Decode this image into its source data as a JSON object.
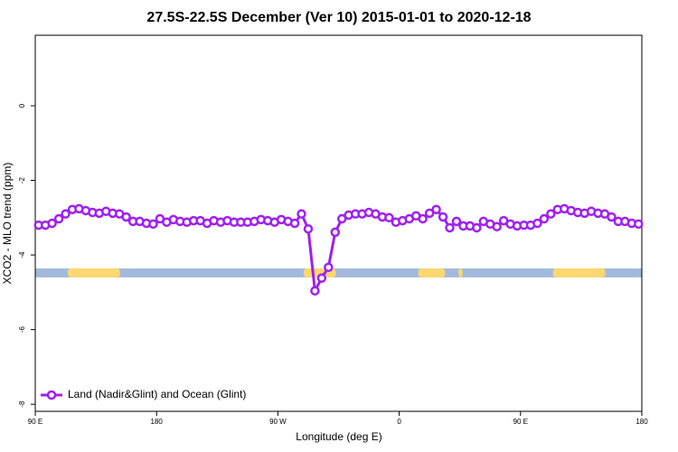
{
  "chart_data": {
    "type": "line",
    "title": "27.5S-22.5S December (Ver 10)   2015-01-01 to 2020-12-18",
    "xlabel": "Longitude (deg E)",
    "ylabel": "XCO2 - MLO trend (ppm)",
    "xlim": [
      90,
      540
    ],
    "ylim": [
      -8.19,
      1.89
    ],
    "xticks": [
      {
        "value": 90,
        "label": "90 E"
      },
      {
        "value": 180,
        "label": "180"
      },
      {
        "value": 270,
        "label": "90 W"
      },
      {
        "value": 360,
        "label": "0"
      },
      {
        "value": 450,
        "label": "90 E"
      },
      {
        "value": 540,
        "label": "180"
      }
    ],
    "yticks": [
      0,
      -2,
      -4,
      -6,
      -8
    ],
    "legend": "bottom-left",
    "x": [
      92.5,
      97.5,
      102.5,
      107.5,
      112.5,
      117.5,
      122.5,
      127.5,
      132.5,
      137.5,
      142.5,
      147.5,
      152.5,
      157.5,
      162.5,
      167.5,
      172.5,
      177.5,
      182.5,
      187.5,
      192.5,
      197.5,
      202.5,
      207.5,
      212.5,
      217.5,
      222.5,
      227.5,
      232.5,
      237.5,
      242.5,
      247.5,
      252.5,
      257.5,
      262.5,
      267.5,
      272.5,
      277.5,
      282.5,
      287.5,
      292.5,
      297.5,
      302.5,
      307.5,
      312.5,
      317.5,
      322.5,
      327.5,
      332.5,
      337.5,
      342.5,
      347.5,
      352.5,
      357.5,
      362.5,
      367.5,
      372.5,
      377.5,
      382.5,
      387.5,
      392.5,
      397.5,
      402.5,
      407.5,
      412.5,
      417.5,
      422.5,
      427.5,
      432.5,
      437.5,
      442.5,
      447.5,
      452.5,
      457.5,
      462.5,
      467.5,
      472.5,
      477.5,
      482.5,
      487.5,
      492.5,
      497.5,
      502.5,
      507.5,
      512.5,
      517.5,
      522.5,
      527.5,
      532.5,
      537.5
    ],
    "series": [
      {
        "name": "Land (Nadir&Glint) and Ocean (Glint)",
        "color": "#a020f0",
        "values": [
          -3.2,
          -3.2,
          -3.15,
          -3.03,
          -2.9,
          -2.78,
          -2.76,
          -2.81,
          -2.86,
          -2.88,
          -2.83,
          -2.88,
          -2.9,
          -2.98,
          -3.1,
          -3.1,
          -3.15,
          -3.17,
          -3.03,
          -3.12,
          -3.05,
          -3.1,
          -3.12,
          -3.08,
          -3.08,
          -3.15,
          -3.08,
          -3.12,
          -3.08,
          -3.12,
          -3.12,
          -3.12,
          -3.1,
          -3.05,
          -3.08,
          -3.12,
          -3.05,
          -3.1,
          -3.15,
          -2.9,
          -3.3,
          -4.96,
          -4.62,
          -4.33,
          -3.39,
          -3.03,
          -2.93,
          -2.9,
          -2.9,
          -2.86,
          -2.9,
          -2.98,
          -3.0,
          -3.12,
          -3.08,
          -3.03,
          -2.95,
          -3.03,
          -2.88,
          -2.78,
          -2.98,
          -3.27,
          -3.1,
          -3.22,
          -3.22,
          -3.27,
          -3.1,
          -3.17,
          -3.24,
          -3.08,
          -3.17,
          -3.22,
          -3.2,
          -3.2,
          -3.15,
          -3.03,
          -2.9,
          -2.78,
          -2.76,
          -2.81,
          -2.86,
          -2.88,
          -2.83,
          -2.88,
          -2.9,
          -2.98,
          -3.1,
          -3.1,
          -3.15,
          -3.17
        ]
      }
    ],
    "band": {
      "range": [
        -4.6,
        -4.36
      ],
      "ocean_color": "#a2b9dc",
      "land_color": "#fdd870",
      "land_segments": [
        [
          114,
          153
        ],
        [
          289,
          313
        ],
        [
          374,
          394
        ],
        [
          404,
          407
        ],
        [
          474,
          513
        ]
      ]
    }
  }
}
